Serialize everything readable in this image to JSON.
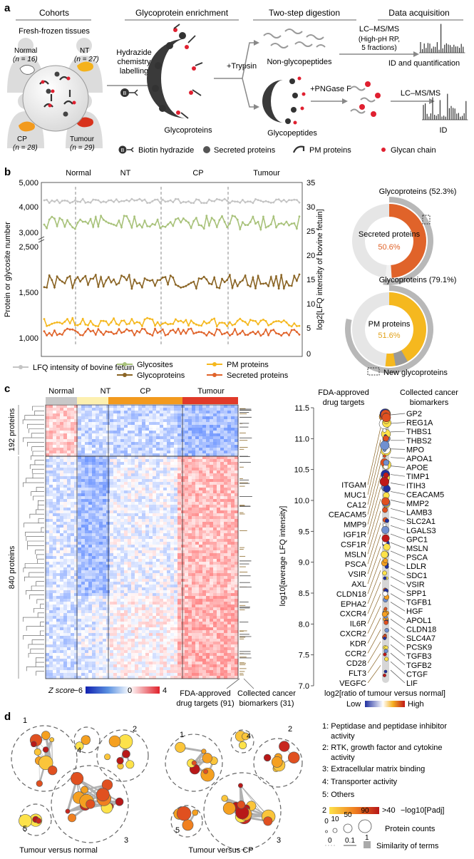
{
  "panel_a": {
    "label": "a",
    "headers": [
      "Cohorts",
      "Glycoprotein enrichment",
      "Two-step digestion",
      "Data acquisition"
    ],
    "fresh_frozen": "Fresh-frozen tissues",
    "normal": "Normal",
    "normal_n": "(n = 16)",
    "nt": "NT",
    "nt_n": "(n = 27)",
    "cp": "CP",
    "cp_n": "(n = 28)",
    "tumour": "Tumour",
    "tumour_n": "(n = 29)",
    "hydrazide": [
      "Hydrazide",
      "chemistry",
      "labelling"
    ],
    "trypsin": "+Trypsin",
    "glycoproteins": "Glycoproteins",
    "non_glyco": "Non-glycopeptides",
    "glycopeptides": "Glycopeptides",
    "lcms1": "LC–MS/MS",
    "lcms1_sub": [
      "(High-pH RP,",
      "5 fractions)"
    ],
    "pngase": "+PNGase F",
    "lcms2": "LC–MS/MS",
    "id_quant": "ID and quantification",
    "id": "ID",
    "legend": [
      "Biotin hydrazide",
      "Secreted proteins",
      "PM proteins",
      "Glycan chain"
    ]
  },
  "panel_b": {
    "label": "b",
    "groups": [
      "Normal",
      "NT",
      "CP",
      "Tumour"
    ],
    "y_left_label": "Protein or glycosite number",
    "y_right_label": "log2[LFQ intensity of bovine fetuin]",
    "left_ticks": [
      "5,000",
      "4,000",
      "3,000",
      "2,500",
      "1,500",
      "1,000"
    ],
    "right_ticks": [
      "35",
      "30",
      "25",
      "20",
      "15",
      "10",
      "5",
      "0"
    ],
    "legend": [
      "LFQ intensity of bovine fetuin",
      "Glycosites",
      "Glycoproteins",
      "PM proteins",
      "Secreted proteins"
    ],
    "donut1_outer": "Glycoproteins (52.3%)",
    "donut1_center": "Secreted proteins",
    "donut1_pct": "50.6%",
    "donut2_outer": "Glycoproteins (79.1%)",
    "donut2_center": "PM proteins",
    "donut2_pct": "51.6%",
    "new_glyco": "New glycoproteins"
  },
  "panel_c": {
    "label": "c",
    "groups": [
      "Normal",
      "NT",
      "CP",
      "Tumour"
    ],
    "row_label_1": "192 proteins",
    "row_label_2": "840 proteins",
    "zscore_label": "Z score",
    "zscore_ticks": [
      "−6",
      "0",
      "4"
    ],
    "fda_bottom": [
      "FDA-approved",
      "drug targets (91)"
    ],
    "cancer_bottom": [
      "Collected cancer",
      "biomarkers (31)"
    ],
    "fda_header": [
      "FDA-approved",
      "drug targets"
    ],
    "cancer_header": [
      "Collected cancer",
      "biomarkers"
    ],
    "y_label": "log10[average LFQ intensity]",
    "y_ticks": [
      "11.5",
      "11.0",
      "10.5",
      "10.0",
      "9.5",
      "9.0",
      "8.5",
      "8.0",
      "7.5",
      "7.0"
    ],
    "x_label": "log2[ratio of tumour versus normal]",
    "low": "Low",
    "high": "High",
    "fda_list": [
      "ITGAM",
      "MUC1",
      "CA12",
      "CEACAM5",
      "MMP9",
      "IGF1R",
      "CSF1R",
      "MSLN",
      "PSCA",
      "VSIR",
      "AXL",
      "CLDN18",
      "EPHA2",
      "CXCR4",
      "IL6R",
      "CXCR2",
      "KDR",
      "CCR2",
      "CD28",
      "FLT3",
      "VEGFC"
    ],
    "cancer_list": [
      "GP2",
      "REG1A",
      "THBS1",
      "THBS2",
      "MPO",
      "APOA1",
      "APOE",
      "TIMP1",
      "ITIH3",
      "CEACAM5",
      "MMP2",
      "LAMB3",
      "SLC2A1",
      "LGALS3",
      "GPC1",
      "MSLN",
      "PSCA",
      "LDLR",
      "SDC1",
      "VSIR",
      "SPP1",
      "TGFB1",
      "HGF",
      "APOL1",
      "CLDN18",
      "SLC4A7",
      "PCSK9",
      "TGFB3",
      "TGFB2",
      "CTGF",
      "LIF"
    ]
  },
  "panel_d": {
    "label": "d",
    "net1_title": "Tumour versus normal",
    "net2_title": "Tumour versus CP",
    "cluster_nums": [
      "1",
      "2",
      "3",
      "4",
      "5"
    ],
    "legend_items": [
      "1: Peptidase and peptidase inhibitor activity",
      "2: RTK, growth factor and cytokine activity",
      "3: Extracellular matrix binding",
      "4: Transporter activity",
      "5: Others"
    ],
    "pval_ticks": [
      "2",
      ">40"
    ],
    "pval_label": "−log10[Padj]",
    "counts_ticks": [
      "0",
      "10",
      "50",
      "90"
    ],
    "counts_label": "Protein counts",
    "sim_ticks": [
      "0",
      "0.1",
      "1"
    ],
    "sim_label": "Similarity of terms"
  },
  "colors": {
    "glycosites": "#a8c27a",
    "glycoproteins": "#8a6424",
    "pm": "#f5b81f",
    "secreted": "#e0632a",
    "lfq": "#c4c4c4",
    "tumour_bar": "#e03a2a",
    "cp_bar": "#f29a1e",
    "nt_bar": "#fdf0b0",
    "normal_bar": "#c8c8c8"
  }
}
